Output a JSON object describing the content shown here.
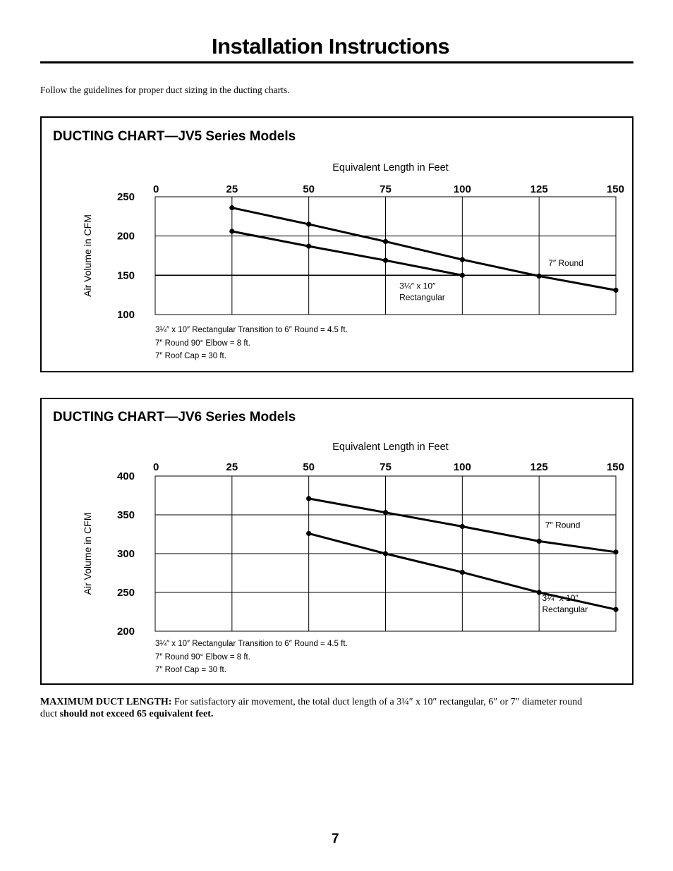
{
  "page": {
    "title": "Installation Instructions",
    "intro": "Follow the guidelines for proper duct sizing in the ducting charts.",
    "max_duct": {
      "label": "MAXIMUM DUCT LENGTH:",
      "text_a": " For satisfactory air movement, the total duct length of a 3¼″ x 10″ rectangular, 6″ or 7″ diameter round duct ",
      "emphasis": "should not exceed 65 equivalent feet."
    },
    "page_number": "7"
  },
  "chart_data": [
    {
      "type": "line",
      "title": "DUCTING CHART—JV5 Series Models",
      "xlabel": "Equivalent Length in Feet",
      "ylabel": "Air Volume in CFM",
      "x_ticks": [
        "0",
        "25",
        "50",
        "75",
        "100",
        "125",
        "150"
      ],
      "y_ticks": [
        "250",
        "200",
        "150",
        "100"
      ],
      "xlim": [
        0,
        150
      ],
      "ylim": [
        100,
        250
      ],
      "grid": true,
      "series": [
        {
          "name": "7″ Round",
          "x": [
            25,
            50,
            75,
            100,
            125,
            150
          ],
          "y": [
            236,
            215,
            193,
            170,
            149,
            131
          ]
        },
        {
          "name_lines": [
            "3¼″ x 10″",
            "Rectangular"
          ],
          "x": [
            25,
            50,
            75,
            100
          ],
          "y": [
            206,
            187,
            169,
            150
          ]
        }
      ],
      "footnotes": [
        "3¼″ x 10″ Rectangular Transition to 6″ Round = 4.5 ft.",
        "7″ Round 90° Elbow = 8 ft.",
        "7″ Roof Cap = 30 ft."
      ]
    },
    {
      "type": "line",
      "title": "DUCTING CHART—JV6 Series Models",
      "xlabel": "Equivalent Length in Feet",
      "ylabel": "Air Volume in CFM",
      "x_ticks": [
        "0",
        "25",
        "50",
        "75",
        "100",
        "125",
        "150"
      ],
      "y_ticks": [
        "400",
        "350",
        "300",
        "250",
        "200"
      ],
      "xlim": [
        0,
        150
      ],
      "ylim": [
        200,
        400
      ],
      "grid": true,
      "series": [
        {
          "name": "7″ Round",
          "x": [
            50,
            75,
            100,
            125,
            150
          ],
          "y": [
            371,
            353,
            335,
            316,
            302
          ]
        },
        {
          "name_lines": [
            "3¼″ x 10″",
            "Rectangular"
          ],
          "x": [
            50,
            75,
            100,
            125,
            150
          ],
          "y": [
            326,
            300,
            276,
            250,
            228
          ]
        }
      ],
      "footnotes": [
        "3¼″ x 10″ Rectangular Transition to 6″ Round = 4.5 ft.",
        "7″ Round 90° Elbow = 8 ft.",
        "7″ Roof Cap = 30 ft."
      ]
    }
  ]
}
